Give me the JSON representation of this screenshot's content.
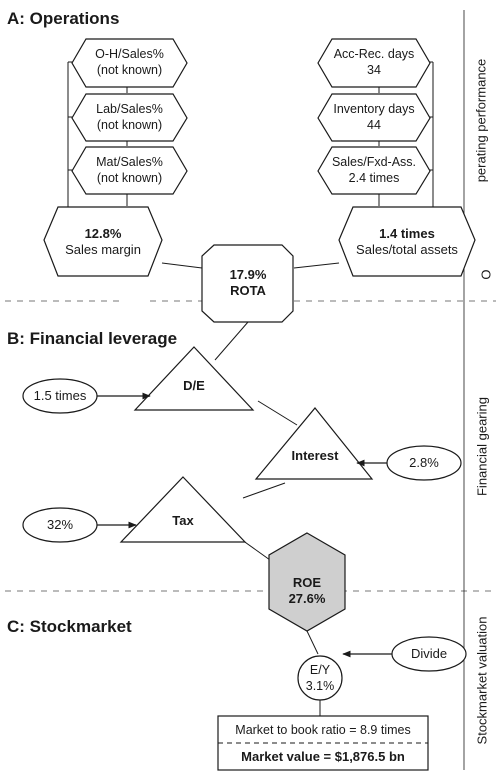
{
  "sections": {
    "a_title": "A: Operations",
    "b_title": "B: Financial leverage",
    "c_title": "C: Stockmarket"
  },
  "side_labels": {
    "operating_main": "perating performance",
    "operating_o": "O",
    "financial": "Financial gearing",
    "stockmarket": "Stockmarket valuation"
  },
  "operations": {
    "left_inputs": [
      {
        "line1": "O-H/Sales%",
        "line2": "(not known)"
      },
      {
        "line1": "Lab/Sales%",
        "line2": "(not known)"
      },
      {
        "line1": "Mat/Sales%",
        "line2": "(not known)"
      }
    ],
    "right_inputs": [
      {
        "line1": "Acc-Rec. days",
        "line2": "34"
      },
      {
        "line1": "Inventory days",
        "line2": "44"
      },
      {
        "line1": "Sales/Fxd-Ass.",
        "line2": "2.4 times"
      }
    ],
    "sales_margin": {
      "value": "12.8%",
      "label": "Sales margin"
    },
    "sales_assets": {
      "value": "1.4 times",
      "label": "Sales/total assets"
    },
    "rota": {
      "value": "17.9%",
      "label": "ROTA"
    }
  },
  "leverage": {
    "de": {
      "label": "D/E",
      "input": "1.5 times"
    },
    "interest": {
      "label": "Interest",
      "input": "2.8%"
    },
    "tax": {
      "label": "Tax",
      "input": "32%"
    }
  },
  "roe": {
    "label": "ROE",
    "value": "27.6%"
  },
  "stockmarket": {
    "divide": "Divide",
    "ey_label": "E/Y",
    "ey_value": "3.1%",
    "market_to_book": "Market to book ratio = 8.9 times",
    "market_value": "Market value = $1,876.5 bn"
  },
  "colors": {
    "roe_fill": "#cfcfcf",
    "stroke": "#1a1a1a",
    "dash": "#777777"
  }
}
